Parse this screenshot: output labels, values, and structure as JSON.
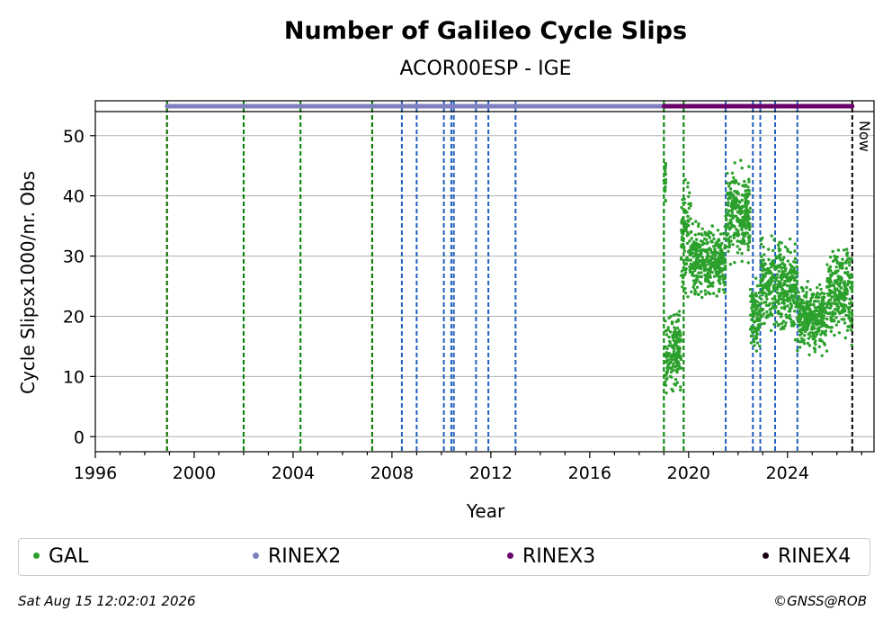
{
  "chart_data": {
    "type": "scatter",
    "title": "Number of Galileo Cycle Slips",
    "subtitle": "ACOR00ESP - IGE",
    "xlabel": "Year",
    "ylabel": "Cycle Slipsx1000/nr. Obs",
    "xlim": [
      1996.0,
      2027.5
    ],
    "ylim": [
      -2.5,
      54
    ],
    "x_ticks": [
      1996,
      2000,
      2004,
      2008,
      2012,
      2016,
      2020,
      2024
    ],
    "y_ticks": [
      0,
      10,
      20,
      30,
      40,
      50
    ],
    "grid": "horizontal",
    "now_label": "Now",
    "now_x": 2026.62,
    "legend_placement": "bottom",
    "series": [
      {
        "name": "GAL",
        "color": "#2ca02c",
        "segments": [
          {
            "x": [
              2019.0,
              2019.08
            ],
            "y_center": 43,
            "spread": 4
          },
          {
            "x": [
              2019.05,
              2019.7
            ],
            "y_center": 14,
            "spread": 4
          },
          {
            "x": [
              2019.7,
              2020.1
            ],
            "y_center": 33,
            "spread": 6
          },
          {
            "x": [
              2020.1,
              2021.5
            ],
            "y_center": 29,
            "spread": 4
          },
          {
            "x": [
              2021.5,
              2022.5
            ],
            "y_center": 37,
            "spread": 5
          },
          {
            "x": [
              2022.5,
              2022.9
            ],
            "y_center": 20,
            "spread": 4
          },
          {
            "x": [
              2022.9,
              2024.4
            ],
            "y_center": 25,
            "spread": 5
          },
          {
            "x": [
              2024.4,
              2025.6
            ],
            "y_center": 20,
            "spread": 4
          },
          {
            "x": [
              2025.6,
              2026.62
            ],
            "y_center": 24,
            "spread": 5
          }
        ]
      },
      {
        "name": "RINEX2",
        "color": "#8080c0",
        "y": 55,
        "ranges": [
          [
            1998.9,
            2016.9
          ],
          [
            2016.95,
            2019.0
          ]
        ]
      },
      {
        "name": "RINEX3",
        "color": "#6b006b",
        "y": 55,
        "ranges": [
          [
            2019.0,
            2025.5
          ],
          [
            2025.5,
            2026.62
          ]
        ]
      },
      {
        "name": "RINEX4",
        "color": "#1a0010",
        "y": 55,
        "ranges": []
      }
    ],
    "vlines": [
      {
        "x": 1998.9,
        "color": "#d62728"
      },
      {
        "x": 1998.9,
        "color": "#008000"
      },
      {
        "x": 2002.0,
        "color": "#008000"
      },
      {
        "x": 2004.3,
        "color": "#008000"
      },
      {
        "x": 2007.2,
        "color": "#d62728"
      },
      {
        "x": 2007.2,
        "color": "#008000"
      },
      {
        "x": 2008.4,
        "color": "#1f5fbf"
      },
      {
        "x": 2009.0,
        "color": "#1f5fbf"
      },
      {
        "x": 2010.1,
        "color": "#1f5fbf"
      },
      {
        "x": 2010.4,
        "color": "#1f5fbf"
      },
      {
        "x": 2010.5,
        "color": "#1f5fbf"
      },
      {
        "x": 2011.4,
        "color": "#1f5fbf"
      },
      {
        "x": 2011.9,
        "color": "#1f5fbf"
      },
      {
        "x": 2013.0,
        "color": "#1f5fbf"
      },
      {
        "x": 2019.0,
        "color": "#008000"
      },
      {
        "x": 2019.8,
        "color": "#008000"
      },
      {
        "x": 2021.5,
        "color": "#1f5fbf"
      },
      {
        "x": 2022.6,
        "color": "#1f5fbf"
      },
      {
        "x": 2022.9,
        "color": "#1f5fbf"
      },
      {
        "x": 2023.5,
        "color": "#1f5fbf"
      },
      {
        "x": 2024.4,
        "color": "#1f5fbf"
      },
      {
        "x": 2026.62,
        "color": "#000000"
      }
    ]
  },
  "legend": [
    {
      "label": "GAL",
      "color": "#2ca02c"
    },
    {
      "label": "RINEX2",
      "color": "#8080c0"
    },
    {
      "label": "RINEX3",
      "color": "#6b006b"
    },
    {
      "label": "RINEX4",
      "color": "#1a0010"
    }
  ],
  "footer": {
    "timestamp": "Sat Aug 15 12:02:01 2026",
    "copyright": "©GNSS@ROB"
  }
}
